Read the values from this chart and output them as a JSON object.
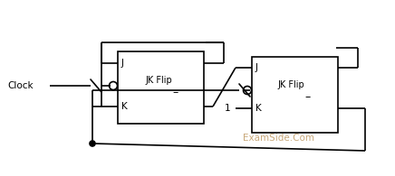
{
  "bg_color": "#ffffff",
  "line_color": "#000000",
  "text_color": "#000000",
  "watermark_color": "#c8a87a",
  "watermark_text": "ExamSide.Com",
  "clock_label": "Clock",
  "ff1_label": "JK Flip",
  "ff2_label": "JK Flip",
  "ff1_j": "J",
  "ff1_k": "K",
  "ff2_j": "J",
  "ff2_k": "K",
  "ff1_bar": "–",
  "ff2_bar": "–",
  "k2_input": "1",
  "figsize": [
    4.36,
    1.95
  ],
  "dpi": 100
}
